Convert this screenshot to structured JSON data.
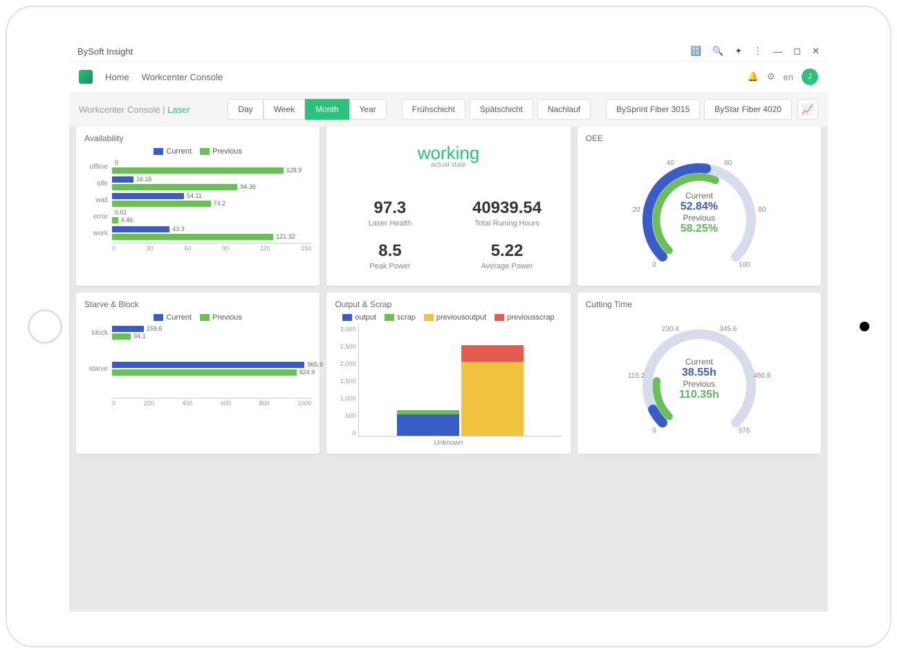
{
  "window": {
    "title": "BySoft Insight"
  },
  "nav": {
    "home": "Home",
    "console": "Workcenter Console",
    "lang": "en",
    "avatar": "J"
  },
  "breadcrumb": {
    "parent": "Workcenter Console",
    "sep": " | ",
    "current": "Laser"
  },
  "filters": {
    "time": [
      "Day",
      "Week",
      "Month",
      "Year"
    ],
    "time_active": 2,
    "shifts": [
      "Frühschicht",
      "Spätschicht",
      "Nachlauf"
    ],
    "machines": [
      "BySprint Fiber 3015",
      "ByStar Fiber 4020"
    ]
  },
  "colors": {
    "blue": "#3a5cc9",
    "green": "#6bbf59",
    "yellow": "#f0c23e",
    "red": "#e55b4d",
    "accent": "#2bc27a",
    "gaugeTrack": "#d6dceb"
  },
  "availability": {
    "title": "Availability",
    "legend": [
      "Current",
      "Previous"
    ],
    "categories": [
      "offline",
      "idle",
      "wait",
      "error",
      "work"
    ],
    "current": [
      0,
      16.15,
      54.11,
      0.01,
      43.3
    ],
    "previous": [
      128.9,
      94.36,
      74.2,
      4.46,
      121.32
    ],
    "xmax": 150,
    "xticks": [
      0,
      30,
      60,
      90,
      120,
      150
    ]
  },
  "status": {
    "title": "working",
    "subtitle": "actual state",
    "kpis": [
      {
        "value": "97.3",
        "label": "Laser Health"
      },
      {
        "value": "40939.54",
        "label": "Total Runing Hours"
      },
      {
        "value": "8.5",
        "label": "Peak Power"
      },
      {
        "value": "5.22",
        "label": "Average Power"
      }
    ]
  },
  "oee": {
    "title": "OEE",
    "type": "gauge",
    "current_label": "Current",
    "current": "52.84%",
    "previous_label": "Previous",
    "previous": "58.25%",
    "ticks": [
      0,
      20,
      40,
      60,
      80,
      100
    ],
    "current_pct": 52.84,
    "previous_pct": 58.25
  },
  "starve": {
    "title": "Starve & Block",
    "legend": [
      "Current",
      "Previous"
    ],
    "categories": [
      "block",
      "starve"
    ],
    "current": [
      159.6,
      965.9
    ],
    "previous": [
      94.1,
      924.9
    ],
    "xmax": 1000,
    "xticks": [
      0,
      200,
      400,
      600,
      800,
      1000
    ]
  },
  "output": {
    "title": "Output & Scrap",
    "legend": [
      "output",
      "scrap",
      "previousoutput",
      "previousscrap"
    ],
    "legend_colors": [
      "#3a5cc9",
      "#6bbf59",
      "#f0c23e",
      "#e55b4d"
    ],
    "category": "Unknown",
    "ymax": 3000,
    "yticks": [
      0,
      500,
      1000,
      1500,
      2000,
      2500,
      3000
    ],
    "current": {
      "output": 620,
      "scrap": 120
    },
    "previous": {
      "output": 2150,
      "scrap": 470
    }
  },
  "cutting": {
    "title": "Cutting Time",
    "type": "gauge",
    "current_label": "Current",
    "current": "38.55h",
    "previous_label": "Previous",
    "previous": "110.35h",
    "ticks": [
      0,
      115.2,
      230.4,
      345.6,
      460.8,
      576
    ],
    "max": 576,
    "current_val": 38.55,
    "previous_val": 110.35
  }
}
